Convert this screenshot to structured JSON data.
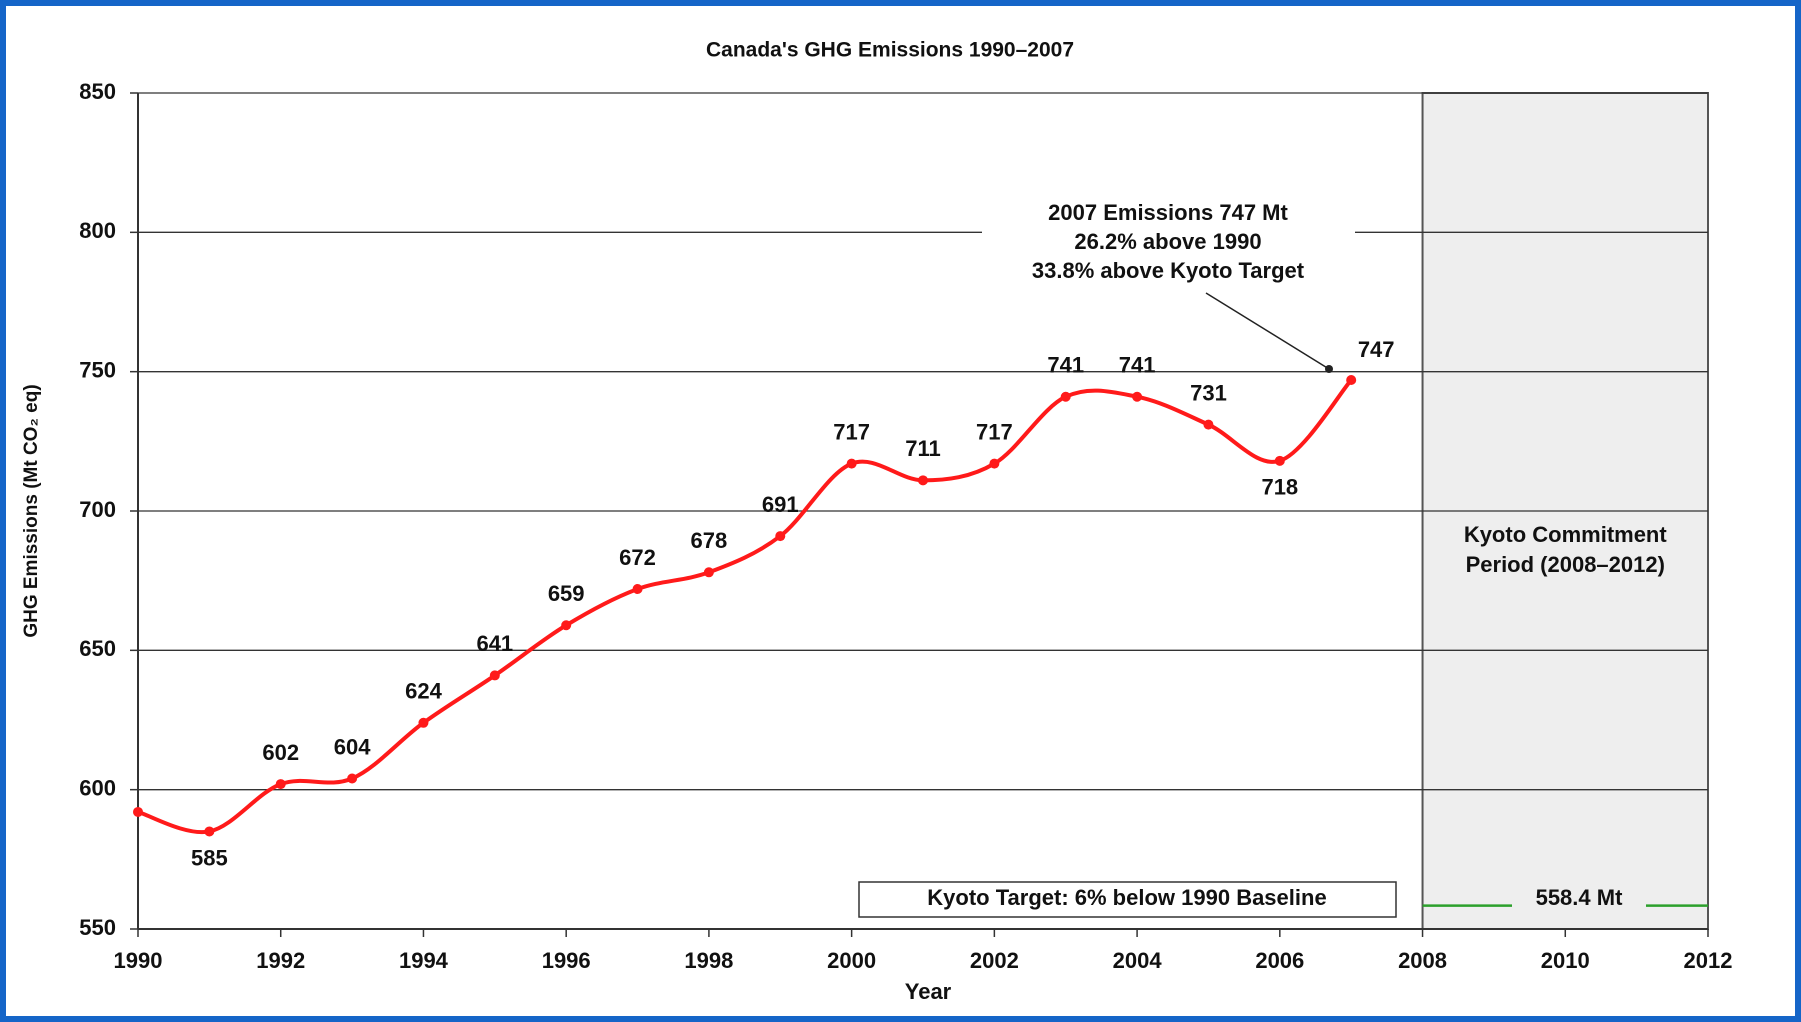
{
  "chart_data": {
    "type": "line",
    "title": "Canada's GHG Emissions 1990–2007",
    "x_label": "Year",
    "y_label": "GHG Emissions (Mt CO₂ eq)",
    "x": [
      1990,
      1991,
      1992,
      1993,
      1994,
      1995,
      1996,
      1997,
      1998,
      1999,
      2000,
      2001,
      2002,
      2003,
      2004,
      2005,
      2006,
      2007
    ],
    "values": [
      592,
      585,
      602,
      604,
      624,
      641,
      659,
      672,
      678,
      691,
      717,
      711,
      717,
      741,
      741,
      731,
      718,
      747
    ],
    "value_labels": [
      null,
      "585",
      "602",
      "604",
      "624",
      "641",
      "659",
      "672",
      "678",
      "691",
      "717",
      "711",
      "717",
      "741",
      "741",
      "731",
      "718",
      "747"
    ],
    "color": "#ff1a1a",
    "xlim": [
      1990,
      2012
    ],
    "xticks": [
      1990,
      1992,
      1994,
      1996,
      1998,
      2000,
      2002,
      2004,
      2006,
      2008,
      2010,
      2012
    ],
    "ylim": [
      550,
      850
    ],
    "yticks": [
      550,
      600,
      650,
      700,
      750,
      800,
      850
    ],
    "grid": true,
    "annotation": [
      "2007 Emissions 747 Mt",
      "26.2% above 1990",
      "33.8% above Kyoto Target"
    ],
    "period": {
      "xlim": [
        2008,
        2012
      ],
      "label": [
        "Kyoto Commitment",
        "Period (2008–2012)"
      ]
    },
    "target": {
      "value": 558.4,
      "label": "558.4 Mt",
      "color": "#2ca02c",
      "note": "Kyoto Target: 6% below 1990 Baseline"
    }
  }
}
